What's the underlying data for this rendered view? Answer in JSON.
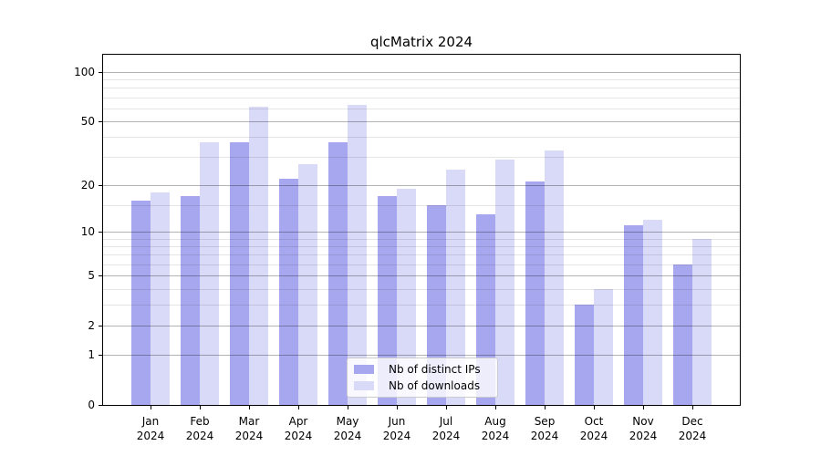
{
  "chart_data": {
    "type": "bar",
    "title": "qlcMatrix 2024",
    "categories": [
      "Jan",
      "Feb",
      "Mar",
      "Apr",
      "May",
      "Jun",
      "Jul",
      "Aug",
      "Sep",
      "Oct",
      "Nov",
      "Dec"
    ],
    "x_year": "2024",
    "series": [
      {
        "name": "Nb of distinct IPs",
        "color": "#a7a7ef",
        "values": [
          16,
          17,
          37,
          22,
          37,
          17,
          15,
          13,
          21,
          3,
          11,
          6
        ]
      },
      {
        "name": "Nb of downloads",
        "color": "#d9d9f8",
        "values": [
          18,
          37,
          61,
          27,
          63,
          19,
          25,
          29,
          33,
          4,
          12,
          9
        ]
      }
    ],
    "yscale": "log1p",
    "ylim": [
      0,
      127
    ],
    "y_major_ticks": [
      0,
      1,
      2,
      5,
      10,
      20,
      50,
      100
    ],
    "y_minor_ticks": [
      3,
      4,
      6,
      7,
      8,
      9,
      15,
      30,
      40,
      60,
      70,
      80,
      90
    ],
    "grid": true,
    "legend_position": "lower-center"
  }
}
